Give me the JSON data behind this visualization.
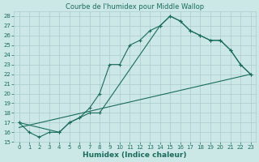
{
  "title": "Courbe de l'humidex pour Middle Wallop",
  "xlabel": "Humidex (Indice chaleur)",
  "background_color": "#cce8e6",
  "grid_color": "#aacccc",
  "line_color": "#1a6b5a",
  "xlim": [
    -0.5,
    23.5
  ],
  "ylim": [
    15,
    28.5
  ],
  "xticks": [
    0,
    1,
    2,
    3,
    4,
    5,
    6,
    7,
    8,
    9,
    10,
    11,
    12,
    13,
    14,
    15,
    16,
    17,
    18,
    19,
    20,
    21,
    22,
    23
  ],
  "yticks": [
    15,
    16,
    17,
    18,
    19,
    20,
    21,
    22,
    23,
    24,
    25,
    26,
    27,
    28
  ],
  "line1_x": [
    0,
    1,
    2,
    3,
    4,
    5,
    6,
    7,
    8,
    9,
    10,
    11,
    12,
    13,
    14,
    15,
    16,
    17,
    18,
    19,
    20,
    21,
    22,
    23
  ],
  "line1_y": [
    17,
    16,
    15.5,
    16,
    16,
    17,
    17.5,
    18.5,
    20,
    23,
    23,
    25,
    25.5,
    26.5,
    27,
    28,
    27.5,
    26.5,
    26,
    25.5,
    25.5,
    24.5,
    23,
    22
  ],
  "line2_x": [
    0,
    4,
    5,
    6,
    7,
    8,
    14,
    15,
    16,
    17,
    18,
    19,
    20,
    21,
    22,
    23
  ],
  "line2_y": [
    17,
    16,
    17,
    17.5,
    18,
    18,
    27,
    28,
    27.5,
    26.5,
    26,
    25.5,
    25.5,
    24.5,
    23,
    22
  ],
  "line3_x": [
    0,
    23
  ],
  "line3_y": [
    16.5,
    22
  ],
  "title_fontsize": 6,
  "axis_fontsize": 6.5,
  "tick_fontsize": 5
}
